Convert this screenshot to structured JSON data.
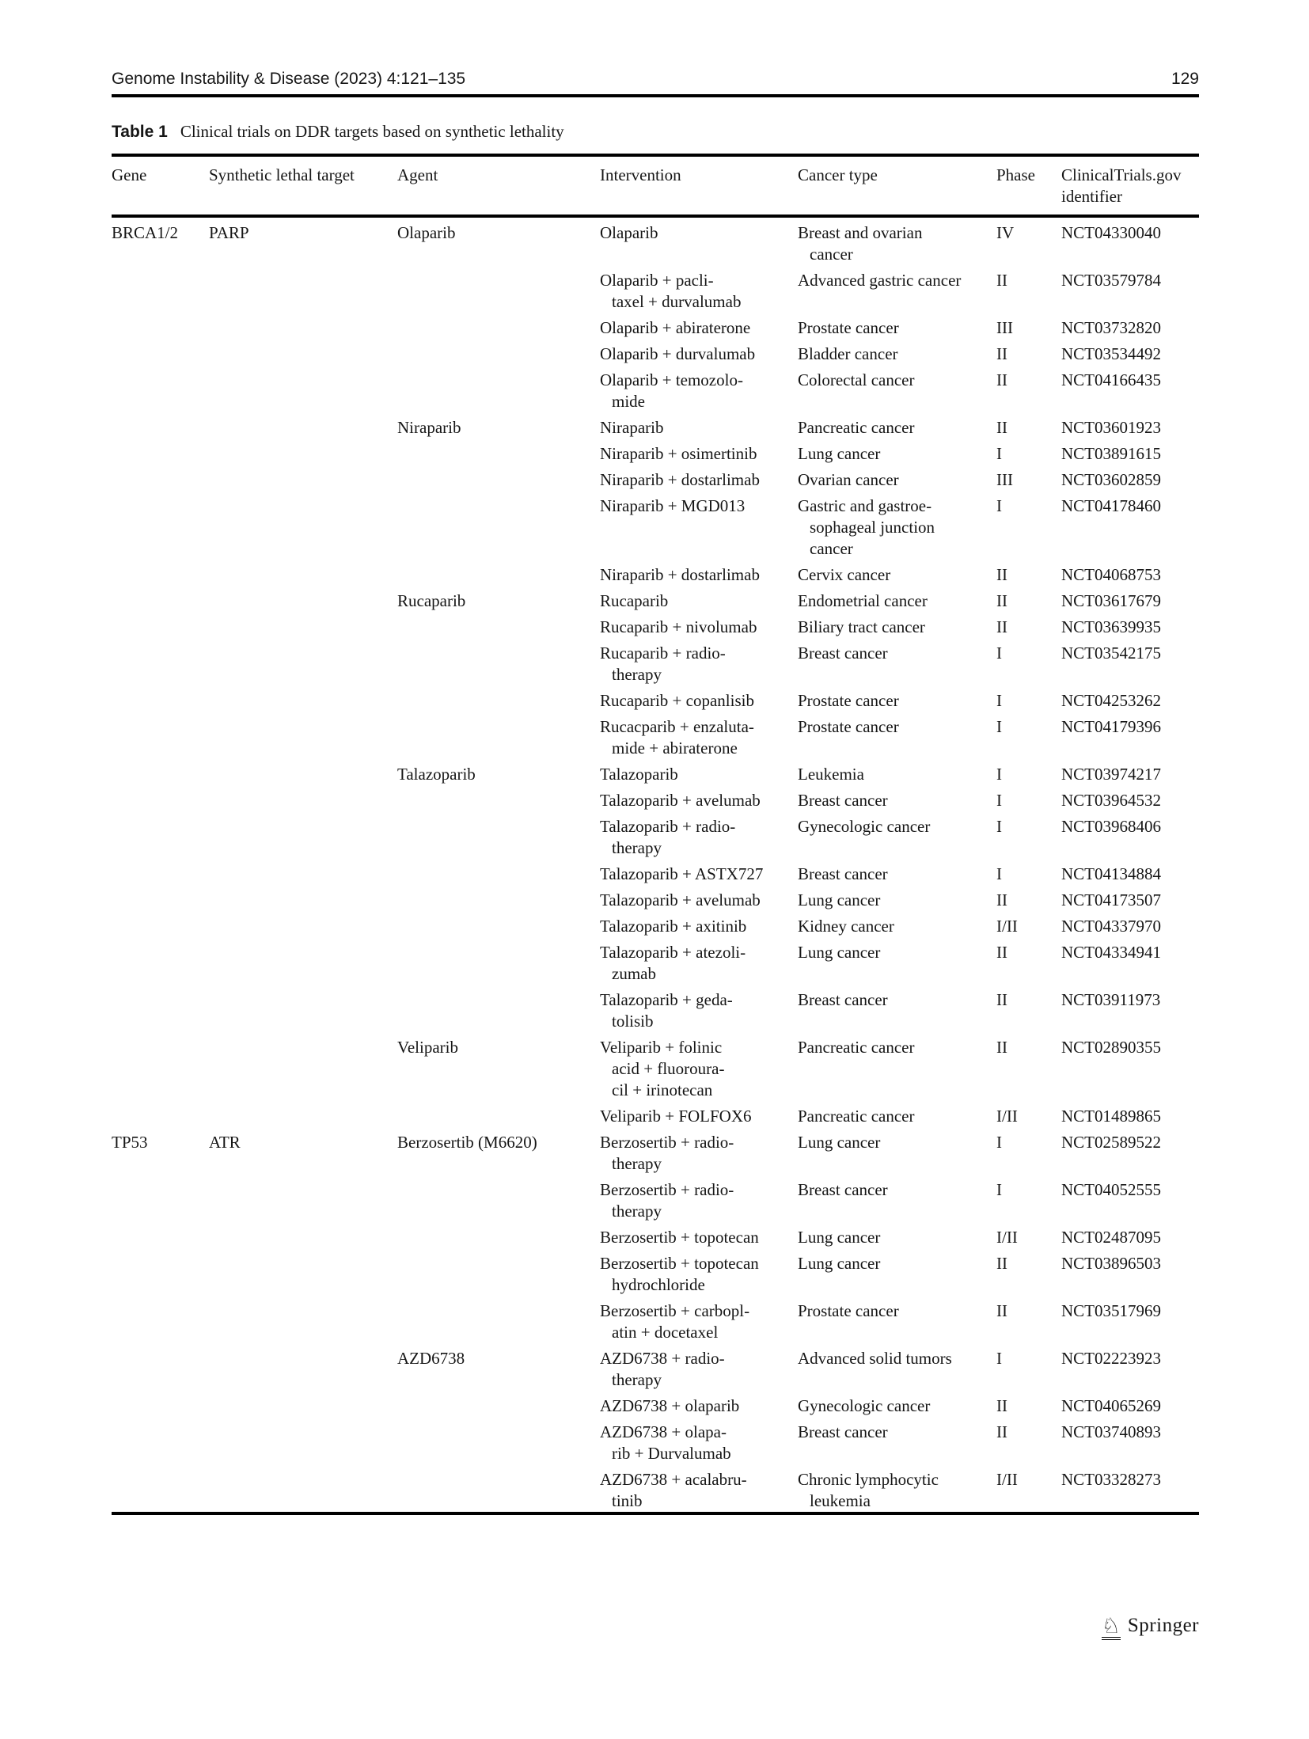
{
  "page": {
    "running_head": "Genome Instability & Disease (2023) 4:121–135",
    "page_number": "129"
  },
  "caption": {
    "label": "Table 1",
    "text": "Clinical trials on DDR targets based on synthetic lethality"
  },
  "table": {
    "columns": [
      "Gene",
      "Synthetic lethal target",
      "Agent",
      "Intervention",
      "Cancer type",
      "Phase",
      "ClinicalTrials.gov\nidentifier"
    ],
    "rows": [
      {
        "gene": "BRCA1/2",
        "target": "PARP",
        "agent": "Olaparib",
        "intervention": "Olaparib",
        "cancer": "Breast and ovarian\ncancer",
        "phase": "IV",
        "nct": "NCT04330040"
      },
      {
        "intervention": "Olaparib + pacli-\ntaxel + durvalumab",
        "cancer": "Advanced gastric cancer",
        "phase": "II",
        "nct": "NCT03579784"
      },
      {
        "intervention": "Olaparib + abiraterone",
        "cancer": "Prostate cancer",
        "phase": "III",
        "nct": "NCT03732820"
      },
      {
        "intervention": "Olaparib + durvalumab",
        "cancer": "Bladder cancer",
        "phase": "II",
        "nct": "NCT03534492"
      },
      {
        "intervention": "Olaparib + temozolo-\nmide",
        "cancer": "Colorectal cancer",
        "phase": "II",
        "nct": "NCT04166435"
      },
      {
        "agent": "Niraparib",
        "intervention": "Niraparib",
        "cancer": "Pancreatic cancer",
        "phase": "II",
        "nct": "NCT03601923"
      },
      {
        "intervention": "Niraparib + osimertinib",
        "cancer": "Lung cancer",
        "phase": "I",
        "nct": "NCT03891615"
      },
      {
        "intervention": "Niraparib + dostarlimab",
        "cancer": "Ovarian cancer",
        "phase": "III",
        "nct": "NCT03602859"
      },
      {
        "intervention": "Niraparib + MGD013",
        "cancer": "Gastric and gastroe-\nsophageal junction\ncancer",
        "phase": "I",
        "nct": "NCT04178460"
      },
      {
        "intervention": "Niraparib + dostarlimab",
        "cancer": "Cervix cancer",
        "phase": "II",
        "nct": "NCT04068753"
      },
      {
        "agent": "Rucaparib",
        "intervention": "Rucaparib",
        "cancer": "Endometrial cancer",
        "phase": "II",
        "nct": "NCT03617679"
      },
      {
        "intervention": "Rucaparib + nivolumab",
        "cancer": "Biliary tract cancer",
        "phase": "II",
        "nct": "NCT03639935"
      },
      {
        "intervention": "Rucaparib + radio-\ntherapy",
        "cancer": "Breast cancer",
        "phase": "I",
        "nct": "NCT03542175"
      },
      {
        "intervention": "Rucaparib + copanlisib",
        "cancer": "Prostate cancer",
        "phase": "I",
        "nct": "NCT04253262"
      },
      {
        "intervention": "Rucacparib + enzaluta-\nmide + abiraterone",
        "cancer": "Prostate cancer",
        "phase": "I",
        "nct": "NCT04179396"
      },
      {
        "agent": "Talazoparib",
        "intervention": "Talazoparib",
        "cancer": "Leukemia",
        "phase": "I",
        "nct": "NCT03974217"
      },
      {
        "intervention": "Talazoparib + avelumab",
        "cancer": "Breast cancer",
        "phase": "I",
        "nct": "NCT03964532"
      },
      {
        "intervention": "Talazoparib + radio-\ntherapy",
        "cancer": "Gynecologic cancer",
        "phase": "I",
        "nct": "NCT03968406"
      },
      {
        "intervention": "Talazoparib + ASTX727",
        "cancer": "Breast cancer",
        "phase": "I",
        "nct": "NCT04134884"
      },
      {
        "intervention": "Talazoparib + avelumab",
        "cancer": "Lung cancer",
        "phase": "II",
        "nct": "NCT04173507"
      },
      {
        "intervention": "Talazoparib + axitinib",
        "cancer": "Kidney cancer",
        "phase": "I/II",
        "nct": "NCT04337970"
      },
      {
        "intervention": "Talazoparib + atezoli-\nzumab",
        "cancer": "Lung cancer",
        "phase": "II",
        "nct": "NCT04334941"
      },
      {
        "intervention": "Talazoparib + geda-\ntolisib",
        "cancer": "Breast cancer",
        "phase": "II",
        "nct": "NCT03911973"
      },
      {
        "agent": "Veliparib",
        "intervention": "Veliparib + folinic\nacid + fluoroura-\ncil + irinotecan",
        "cancer": "Pancreatic cancer",
        "phase": "II",
        "nct": "NCT02890355"
      },
      {
        "intervention": "Veliparib + FOLFOX6",
        "cancer": "Pancreatic cancer",
        "phase": "I/II",
        "nct": "NCT01489865"
      },
      {
        "gene": "TP53",
        "target": "ATR",
        "agent": "Berzosertib (M6620)",
        "intervention": "Berzosertib + radio-\ntherapy",
        "cancer": "Lung cancer",
        "phase": "I",
        "nct": "NCT02589522"
      },
      {
        "intervention": "Berzosertib + radio-\ntherapy",
        "cancer": "Breast cancer",
        "phase": "I",
        "nct": "NCT04052555"
      },
      {
        "intervention": "Berzosertib + topotecan",
        "cancer": "Lung cancer",
        "phase": "I/II",
        "nct": "NCT02487095"
      },
      {
        "intervention": "Berzosertib + topotecan\nhydrochloride",
        "cancer": "Lung cancer",
        "phase": "II",
        "nct": "NCT03896503"
      },
      {
        "intervention": "Berzosertib + carbopl-\natin + docetaxel",
        "cancer": "Prostate cancer",
        "phase": "II",
        "nct": "NCT03517969"
      },
      {
        "agent": "AZD6738",
        "intervention": "AZD6738 + radio-\ntherapy",
        "cancer": "Advanced solid tumors",
        "phase": "I",
        "nct": "NCT02223923"
      },
      {
        "intervention": "AZD6738 + olaparib",
        "cancer": "Gynecologic cancer",
        "phase": "II",
        "nct": "NCT04065269"
      },
      {
        "intervention": "AZD6738 + olapa-\nrib + Durvalumab",
        "cancer": "Breast cancer",
        "phase": "II",
        "nct": "NCT03740893"
      },
      {
        "intervention": "AZD6738 + acalabru-\ntinib",
        "cancer": "Chronic lymphocytic\nleukemia",
        "phase": "I/II",
        "nct": "NCT03328273"
      }
    ]
  },
  "footer": {
    "publisher": "Springer",
    "logo_glyph": "♘"
  }
}
